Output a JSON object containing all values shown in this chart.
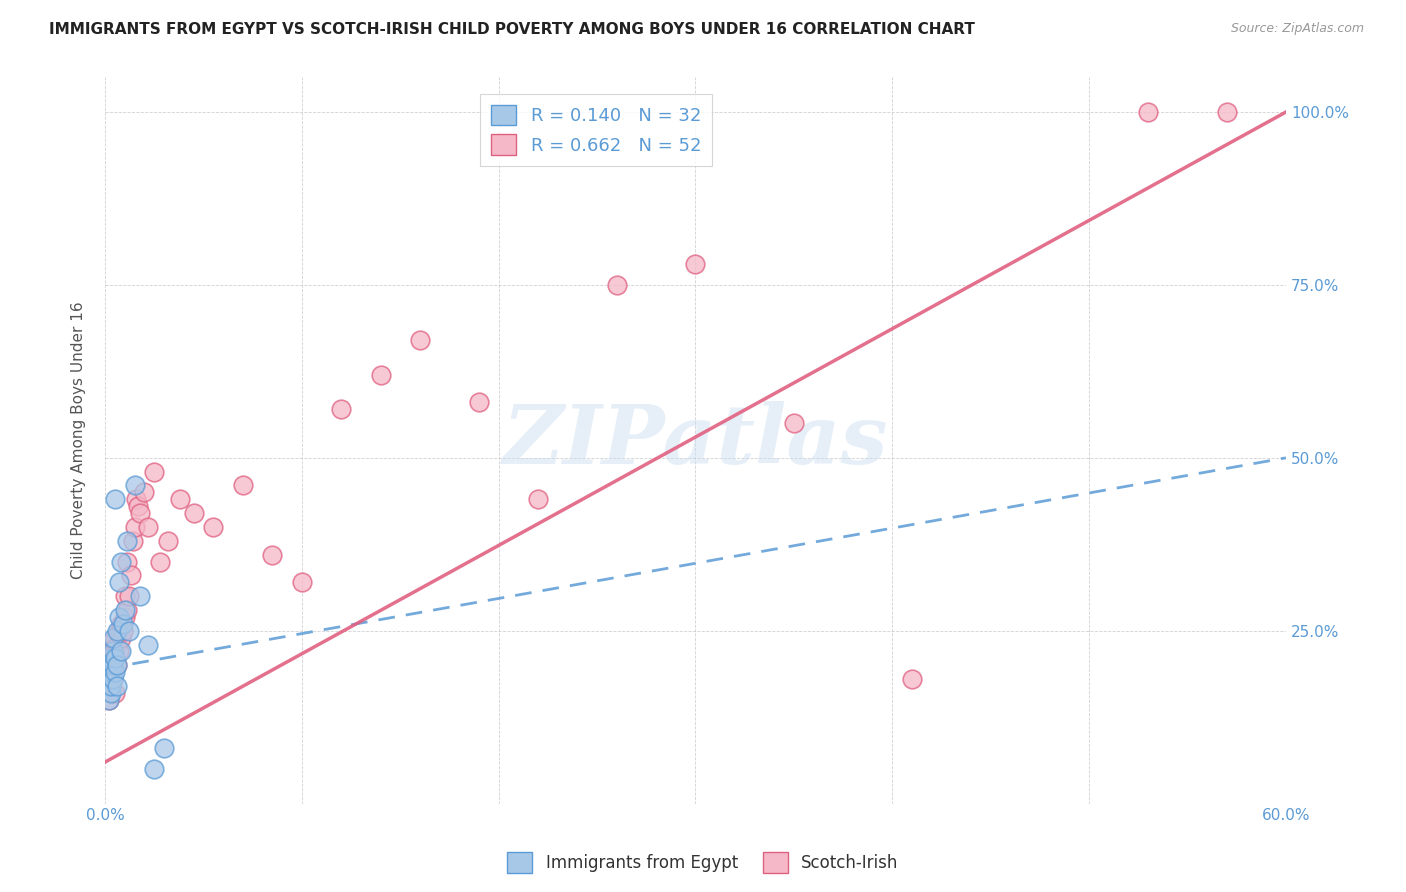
{
  "title": "IMMIGRANTS FROM EGYPT VS SCOTCH-IRISH CHILD POVERTY AMONG BOYS UNDER 16 CORRELATION CHART",
  "source": "Source: ZipAtlas.com",
  "ylabel": "Child Poverty Among Boys Under 16",
  "xlim": [
    0.0,
    0.6
  ],
  "ylim": [
    0.0,
    1.05
  ],
  "ytick_vals": [
    0.0,
    0.25,
    0.5,
    0.75,
    1.0
  ],
  "ytick_labels": [
    "",
    "25.0%",
    "50.0%",
    "75.0%",
    "100.0%"
  ],
  "xtick_vals": [
    0.0,
    0.1,
    0.2,
    0.3,
    0.4,
    0.5,
    0.6
  ],
  "xtick_labels": [
    "0.0%",
    "",
    "",
    "",
    "",
    "",
    "60.0%"
  ],
  "blue_fill": "#a8c8e8",
  "blue_edge": "#5b9bd5",
  "pink_fill": "#f4b8c8",
  "pink_edge": "#e06080",
  "blue_line": "#5b9bd5",
  "pink_line": "#e06080",
  "R_blue": 0.14,
  "N_blue": 32,
  "R_pink": 0.662,
  "N_pink": 52,
  "legend_label_blue": "Immigrants from Egypt",
  "legend_label_pink": "Scotch-Irish",
  "watermark": "ZIPatlas",
  "egypt_x": [
    0.001,
    0.001,
    0.002,
    0.002,
    0.002,
    0.003,
    0.003,
    0.003,
    0.003,
    0.004,
    0.004,
    0.004,
    0.004,
    0.005,
    0.005,
    0.005,
    0.006,
    0.006,
    0.006,
    0.007,
    0.007,
    0.008,
    0.008,
    0.009,
    0.01,
    0.011,
    0.012,
    0.015,
    0.018,
    0.022,
    0.025,
    0.03
  ],
  "egypt_y": [
    0.17,
    0.19,
    0.15,
    0.18,
    0.2,
    0.16,
    0.17,
    0.19,
    0.21,
    0.18,
    0.2,
    0.22,
    0.24,
    0.19,
    0.21,
    0.44,
    0.17,
    0.2,
    0.25,
    0.27,
    0.32,
    0.22,
    0.35,
    0.26,
    0.28,
    0.38,
    0.25,
    0.46,
    0.3,
    0.23,
    0.05,
    0.08
  ],
  "scotch_x": [
    0.001,
    0.001,
    0.002,
    0.002,
    0.003,
    0.003,
    0.003,
    0.004,
    0.004,
    0.005,
    0.005,
    0.005,
    0.006,
    0.006,
    0.007,
    0.007,
    0.008,
    0.008,
    0.009,
    0.01,
    0.01,
    0.011,
    0.011,
    0.012,
    0.013,
    0.014,
    0.015,
    0.016,
    0.017,
    0.018,
    0.02,
    0.022,
    0.025,
    0.028,
    0.032,
    0.038,
    0.045,
    0.055,
    0.07,
    0.085,
    0.1,
    0.12,
    0.14,
    0.16,
    0.19,
    0.22,
    0.26,
    0.3,
    0.35,
    0.41,
    0.53,
    0.57
  ],
  "scotch_y": [
    0.17,
    0.2,
    0.15,
    0.19,
    0.18,
    0.2,
    0.22,
    0.18,
    0.21,
    0.16,
    0.22,
    0.24,
    0.2,
    0.23,
    0.22,
    0.25,
    0.24,
    0.26,
    0.25,
    0.27,
    0.3,
    0.28,
    0.35,
    0.3,
    0.33,
    0.38,
    0.4,
    0.44,
    0.43,
    0.42,
    0.45,
    0.4,
    0.48,
    0.35,
    0.38,
    0.44,
    0.42,
    0.4,
    0.46,
    0.36,
    0.32,
    0.57,
    0.62,
    0.67,
    0.58,
    0.44,
    0.75,
    0.78,
    0.55,
    0.18,
    1.0,
    1.0
  ],
  "blue_line_x0": 0.0,
  "blue_line_x1": 0.6,
  "blue_line_y0": 0.195,
  "blue_line_y1": 0.5,
  "pink_line_x0": 0.0,
  "pink_line_x1": 0.6,
  "pink_line_y0": 0.06,
  "pink_line_y1": 1.0
}
